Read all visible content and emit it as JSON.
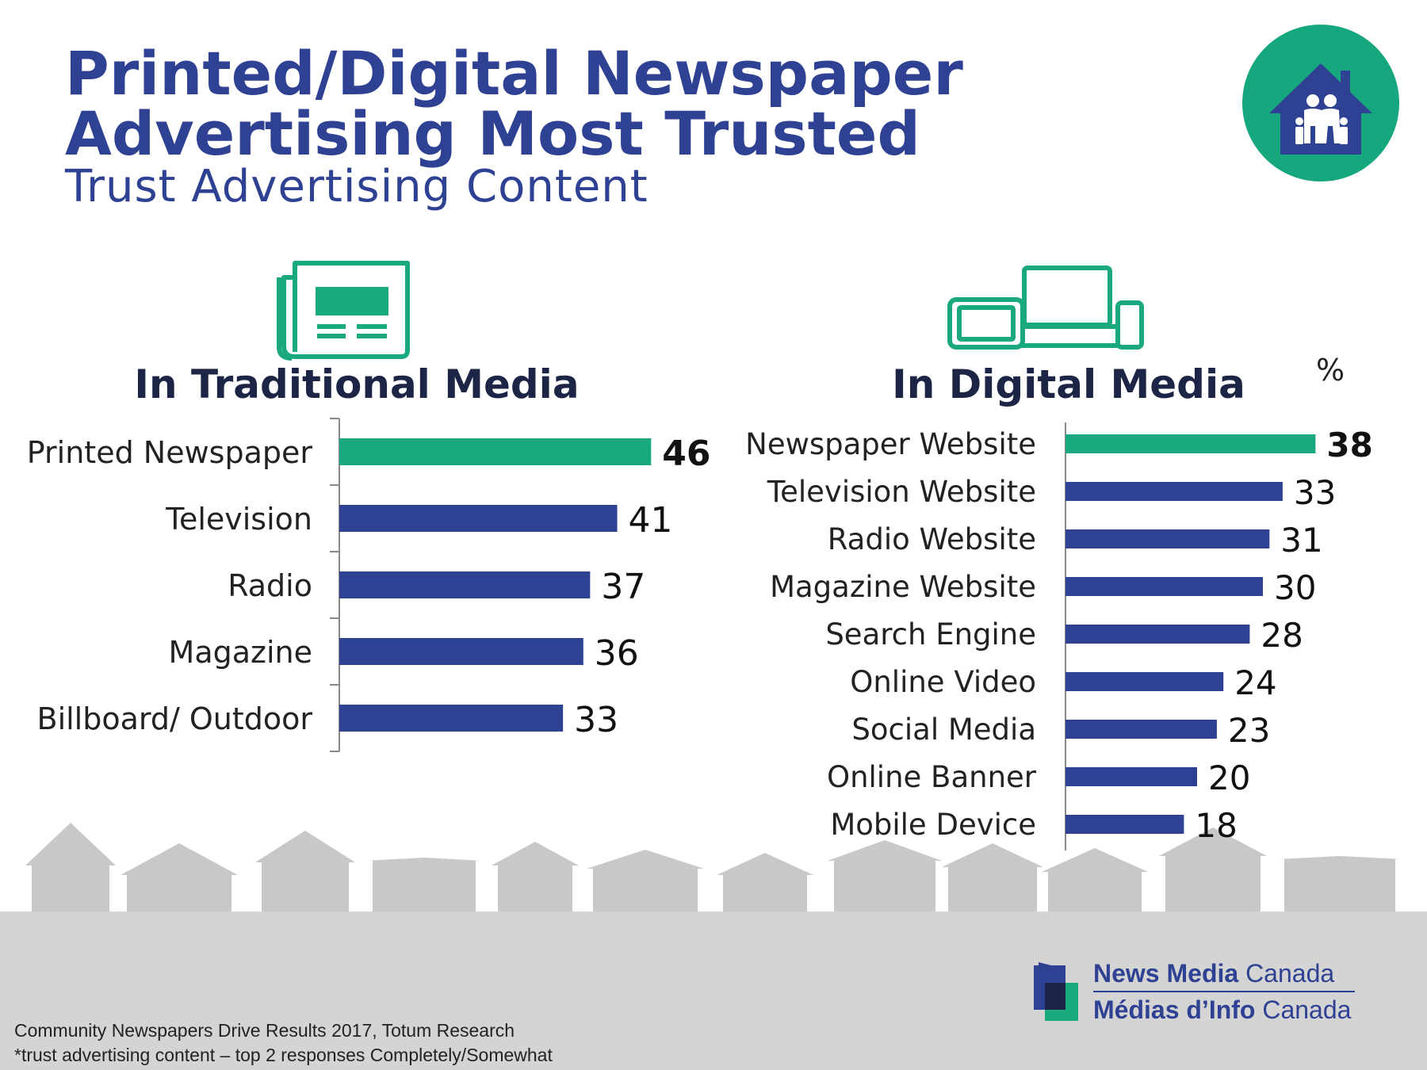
{
  "title": {
    "line1": "Printed/Digital Newspaper",
    "line2": "Advertising Most Trusted",
    "subtitle": "Trust Advertising Content"
  },
  "colors": {
    "highlight": "#1aa97f",
    "bar": "#2f4193",
    "title": "#2f4193",
    "ground": "#d4d4d4",
    "houses": "#c8c8c8",
    "badge": "#17a77f"
  },
  "chart_data": [
    {
      "type": "bar",
      "orientation": "horizontal",
      "title": "In Traditional Media",
      "icon": "newspaper-icon",
      "categories": [
        "Printed Newspaper",
        "Television",
        "Radio",
        "Magazine",
        "Billboard/ Outdoor"
      ],
      "values": [
        46,
        41,
        37,
        36,
        33
      ],
      "highlight_index": 0
    },
    {
      "type": "bar",
      "orientation": "horizontal",
      "title": "In Digital Media",
      "icon": "devices-icon",
      "unit_label": "%",
      "categories": [
        "Newspaper Website",
        "Television Website",
        "Radio Website",
        "Magazine Website",
        "Search Engine",
        "Online Video",
        "Social Media",
        "Online Banner",
        "Mobile Device"
      ],
      "values": [
        38,
        33,
        31,
        30,
        28,
        24,
        23,
        20,
        18
      ],
      "highlight_index": 0
    }
  ],
  "footer": {
    "source": "Community Newspapers Drive Results 2017, Totum Research",
    "note": "*trust advertising content – top 2 responses Completely/Somewhat"
  },
  "logo": {
    "en_bold": "News Media",
    "en_rest": " Canada",
    "fr_bold": "Médias d’Info",
    "fr_rest": " Canada"
  }
}
